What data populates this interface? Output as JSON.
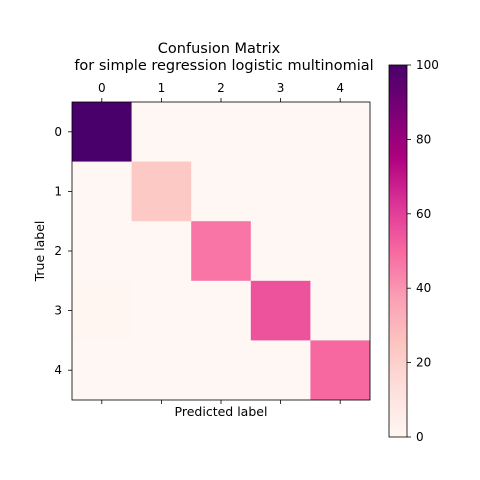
{
  "chart_data": {
    "type": "heatmap",
    "title_line1": "Confusion Matrix",
    "title_line2": "for simple regression logistic multinomial",
    "xlabel": "Predicted label",
    "ylabel": "True label",
    "x_tick_labels": [
      "0",
      "1",
      "2",
      "3",
      "4"
    ],
    "y_tick_labels": [
      "0",
      "1",
      "2",
      "3",
      "4"
    ],
    "colorbar": {
      "range": [
        0,
        100
      ],
      "tick_labels": [
        "0",
        "20",
        "40",
        "60",
        "80",
        "100"
      ],
      "colormap": "RdPu",
      "colors": [
        "#fff7f3",
        "#fde0dd",
        "#fcc5c0",
        "#fa9fb5",
        "#f768a1",
        "#dd3497",
        "#ae017e",
        "#7a0177",
        "#49006a"
      ]
    },
    "matrix": [
      [
        100,
        0,
        0,
        0,
        0
      ],
      [
        0,
        23,
        0,
        0,
        0
      ],
      [
        0,
        0,
        47,
        0,
        0
      ],
      [
        1,
        0,
        0,
        55,
        0
      ],
      [
        0,
        0,
        0,
        0,
        50
      ]
    ]
  }
}
